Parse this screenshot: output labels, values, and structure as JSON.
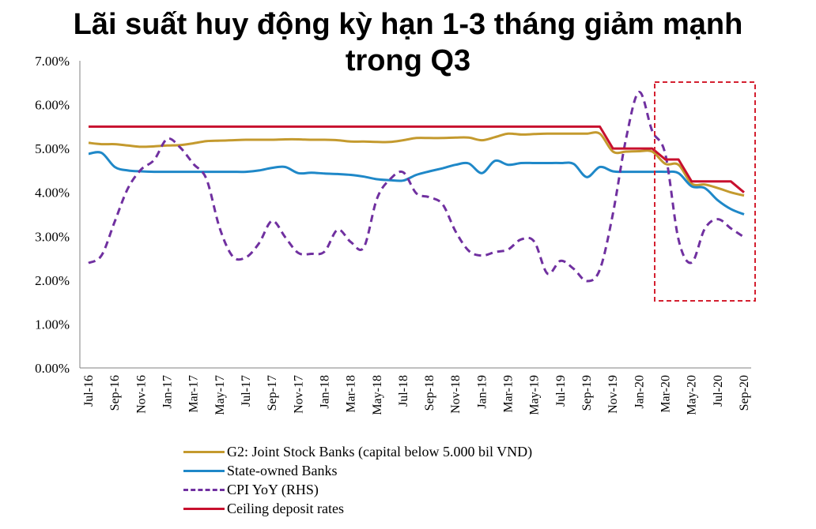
{
  "title": "Lãi suất huy động kỳ hạn 1-3 tháng giảm mạnh trong Q3",
  "title_line1": "Lãi suất huy động kỳ hạn 1-3 tháng giảm mạnh",
  "title_line2": "trong Q3",
  "colors": {
    "g2": "#C49A2E",
    "state": "#1F88C8",
    "cpi": "#7030A0",
    "ceiling": "#C8102E",
    "highlight": "#D42030",
    "axis": "#808080"
  },
  "legend": [
    {
      "key": "g2",
      "label": "G2: Joint Stock Banks (capital below 5.000 bil VND)",
      "style": "solid"
    },
    {
      "key": "state",
      "label": "State-owned Banks",
      "style": "solid"
    },
    {
      "key": "cpi",
      "label": "CPI YoY  (RHS)",
      "style": "dashed"
    },
    {
      "key": "ceiling",
      "label": "Ceiling deposit rates",
      "style": "solid"
    }
  ],
  "chart_data": {
    "type": "line",
    "title": "Lãi suất huy động kỳ hạn 1-3 tháng giảm mạnh trong Q3",
    "xlabel": "",
    "ylabel": "",
    "ylim": [
      0,
      7
    ],
    "y_ticks": [
      "0.00%",
      "1.00%",
      "2.00%",
      "3.00%",
      "4.00%",
      "5.00%",
      "6.00%",
      "7.00%"
    ],
    "x_tick_labels": [
      "Jul-16",
      "Sep-16",
      "Nov-16",
      "Jan-17",
      "Mar-17",
      "May-17",
      "Jul-17",
      "Sep-17",
      "Nov-17",
      "Jan-18",
      "Mar-18",
      "May-18",
      "Jul-18",
      "Sep-18",
      "Nov-18",
      "Jan-19",
      "Mar-19",
      "May-19",
      "Jul-19",
      "Sep-19",
      "Nov-19",
      "Jan-20",
      "Mar-20",
      "May-20",
      "Jul-20",
      "Sep-20"
    ],
    "x": [
      "Jul-16",
      "Aug-16",
      "Sep-16",
      "Oct-16",
      "Nov-16",
      "Dec-16",
      "Jan-17",
      "Feb-17",
      "Mar-17",
      "Apr-17",
      "May-17",
      "Jun-17",
      "Jul-17",
      "Aug-17",
      "Sep-17",
      "Oct-17",
      "Nov-17",
      "Dec-17",
      "Jan-18",
      "Feb-18",
      "Mar-18",
      "Apr-18",
      "May-18",
      "Jun-18",
      "Jul-18",
      "Aug-18",
      "Sep-18",
      "Oct-18",
      "Nov-18",
      "Dec-18",
      "Jan-19",
      "Feb-19",
      "Mar-19",
      "Apr-19",
      "May-19",
      "Jun-19",
      "Jul-19",
      "Aug-19",
      "Sep-19",
      "Oct-19",
      "Nov-19",
      "Dec-19",
      "Jan-20",
      "Feb-20",
      "Mar-20",
      "Apr-20",
      "May-20",
      "Jun-20",
      "Jul-20",
      "Aug-20",
      "Sep-20"
    ],
    "grid": false,
    "legend_position": "bottom",
    "annotations": [
      "Red dashed highlight box over Mar-20 to Sep-20"
    ],
    "series": [
      {
        "name": "G2: Joint Stock Banks (capital below 5.000 bil VND)",
        "style": "solid",
        "values": [
          5.13,
          5.1,
          5.1,
          5.07,
          5.04,
          5.05,
          5.07,
          5.08,
          5.12,
          5.17,
          5.18,
          5.19,
          5.2,
          5.2,
          5.2,
          5.21,
          5.21,
          5.2,
          5.2,
          5.19,
          5.16,
          5.16,
          5.15,
          5.15,
          5.19,
          5.24,
          5.24,
          5.24,
          5.25,
          5.25,
          5.19,
          5.26,
          5.34,
          5.32,
          5.33,
          5.34,
          5.34,
          5.34,
          5.34,
          5.34,
          4.93,
          4.93,
          4.94,
          4.93,
          4.65,
          4.63,
          4.2,
          4.18,
          4.1,
          4.0,
          3.93
        ]
      },
      {
        "name": "State-owned Banks",
        "style": "solid",
        "values": [
          4.88,
          4.9,
          4.58,
          4.5,
          4.48,
          4.47,
          4.47,
          4.47,
          4.47,
          4.47,
          4.47,
          4.47,
          4.47,
          4.5,
          4.56,
          4.58,
          4.44,
          4.45,
          4.43,
          4.42,
          4.4,
          4.36,
          4.3,
          4.28,
          4.27,
          4.4,
          4.48,
          4.55,
          4.63,
          4.66,
          4.44,
          4.72,
          4.63,
          4.67,
          4.67,
          4.67,
          4.67,
          4.65,
          4.35,
          4.58,
          4.48,
          4.47,
          4.47,
          4.47,
          4.47,
          4.44,
          4.14,
          4.1,
          3.82,
          3.62,
          3.5
        ]
      },
      {
        "name": "CPI YoY  (RHS)",
        "style": "dashed",
        "values": [
          2.39,
          2.57,
          3.34,
          4.09,
          4.52,
          4.74,
          5.22,
          5.02,
          4.65,
          4.3,
          3.19,
          2.54,
          2.52,
          2.84,
          3.35,
          2.98,
          2.62,
          2.6,
          2.65,
          3.15,
          2.87,
          2.75,
          3.86,
          4.3,
          4.46,
          3.98,
          3.89,
          3.73,
          3.11,
          2.67,
          2.56,
          2.64,
          2.7,
          2.93,
          2.88,
          2.15,
          2.44,
          2.26,
          1.98,
          2.24,
          3.52,
          5.23,
          6.29,
          5.4,
          4.87,
          2.93,
          2.4,
          3.17,
          3.39,
          3.18,
          2.98
        ]
      },
      {
        "name": "Ceiling deposit rates",
        "style": "solid",
        "values": [
          5.5,
          5.5,
          5.5,
          5.5,
          5.5,
          5.5,
          5.5,
          5.5,
          5.5,
          5.5,
          5.5,
          5.5,
          5.5,
          5.5,
          5.5,
          5.5,
          5.5,
          5.5,
          5.5,
          5.5,
          5.5,
          5.5,
          5.5,
          5.5,
          5.5,
          5.5,
          5.5,
          5.5,
          5.5,
          5.5,
          5.5,
          5.5,
          5.5,
          5.5,
          5.5,
          5.5,
          5.5,
          5.5,
          5.5,
          5.5,
          5.0,
          5.0,
          5.0,
          5.0,
          4.75,
          4.75,
          4.25,
          4.25,
          4.25,
          4.25,
          4.0
        ]
      }
    ]
  }
}
